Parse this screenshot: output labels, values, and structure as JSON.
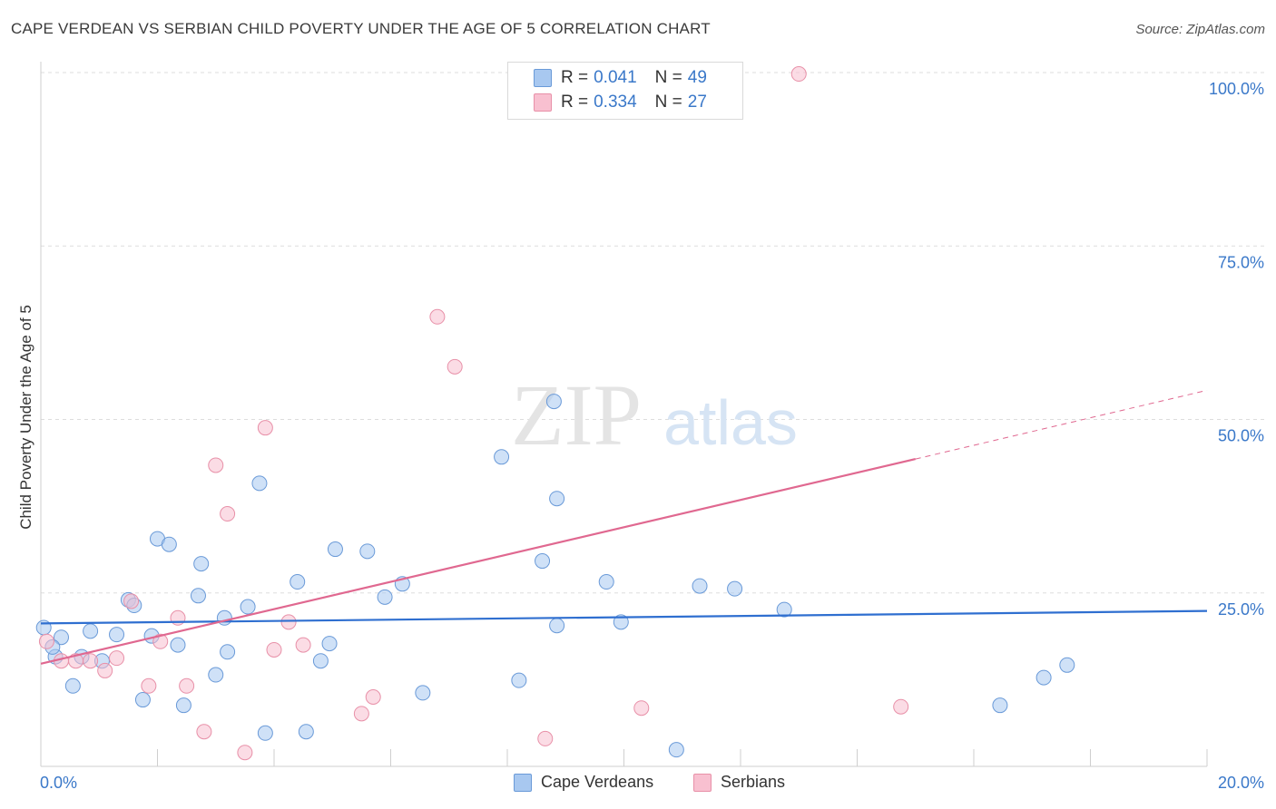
{
  "title": "CAPE VERDEAN VS SERBIAN CHILD POVERTY UNDER THE AGE OF 5 CORRELATION CHART",
  "source": "Source: ZipAtlas.com",
  "watermark": {
    "zip": "ZIP",
    "atlas": "atlas"
  },
  "legend": {
    "rows": [
      {
        "r_label": "R =",
        "r_value": "0.041",
        "n_label": "N =",
        "n_value": "49",
        "color": "#a8c8f0",
        "border": "#6a9ad8"
      },
      {
        "r_label": "R =",
        "r_value": "0.334",
        "n_label": "N =",
        "n_value": "27",
        "color": "#f8c0d0",
        "border": "#e890a8"
      }
    ]
  },
  "bottom_legend": {
    "blue": "Cape Verdeans",
    "pink": "Serbians"
  },
  "chart_data": {
    "type": "scatter",
    "title": "CAPE VERDEAN VS SERBIAN CHILD POVERTY UNDER THE AGE OF 5 CORRELATION CHART",
    "xlabel": "",
    "ylabel": "Child Poverty Under the Age of 5",
    "xlim": [
      0,
      20
    ],
    "ylim": [
      0,
      100
    ],
    "x_tick_labels": [
      "0.0%",
      "20.0%"
    ],
    "y_tick_labels": [
      "25.0%",
      "50.0%",
      "75.0%",
      "100.0%"
    ],
    "y_ticks": [
      25,
      50,
      75,
      100
    ],
    "grid": true,
    "legend_position": "top-center",
    "series": [
      {
        "name": "Cape Verdeans",
        "color": "#a8c8f0",
        "stroke": "#6a9ad8",
        "line_color": "#2f6fd0",
        "r": 0.041,
        "n": 49,
        "trend": {
          "x": [
            0,
            20
          ],
          "y": [
            20.6,
            22.4
          ]
        },
        "points": [
          [
            0.05,
            20.0
          ],
          [
            0.25,
            15.8
          ],
          [
            0.35,
            18.6
          ],
          [
            0.55,
            11.6
          ],
          [
            0.7,
            15.8
          ],
          [
            0.85,
            19.5
          ],
          [
            1.05,
            15.2
          ],
          [
            1.3,
            19.0
          ],
          [
            1.5,
            24.0
          ],
          [
            1.6,
            23.2
          ],
          [
            1.75,
            9.6
          ],
          [
            1.9,
            18.8
          ],
          [
            2.0,
            32.8
          ],
          [
            2.2,
            32.0
          ],
          [
            2.35,
            17.5
          ],
          [
            2.45,
            8.8
          ],
          [
            2.7,
            24.6
          ],
          [
            2.75,
            29.2
          ],
          [
            3.0,
            13.2
          ],
          [
            3.15,
            21.4
          ],
          [
            3.2,
            16.5
          ],
          [
            3.55,
            23.0
          ],
          [
            3.75,
            40.8
          ],
          [
            3.85,
            4.8
          ],
          [
            4.4,
            26.6
          ],
          [
            4.55,
            5.0
          ],
          [
            4.8,
            15.2
          ],
          [
            4.95,
            17.7
          ],
          [
            5.05,
            31.3
          ],
          [
            5.6,
            31.0
          ],
          [
            5.9,
            24.4
          ],
          [
            6.2,
            26.3
          ],
          [
            6.55,
            10.6
          ],
          [
            7.9,
            44.6
          ],
          [
            8.2,
            12.4
          ],
          [
            8.6,
            29.6
          ],
          [
            8.8,
            52.6
          ],
          [
            8.85,
            20.3
          ],
          [
            8.85,
            38.6
          ],
          [
            9.7,
            26.6
          ],
          [
            9.95,
            20.8
          ],
          [
            10.9,
            2.4
          ],
          [
            11.3,
            26.0
          ],
          [
            11.9,
            25.6
          ],
          [
            12.75,
            22.6
          ],
          [
            16.45,
            8.8
          ],
          [
            17.2,
            12.8
          ],
          [
            17.6,
            14.6
          ],
          [
            0.2,
            17.2
          ]
        ]
      },
      {
        "name": "Serbians",
        "color": "#f8c0d0",
        "stroke": "#e890a8",
        "line_color": "#e06890",
        "r": 0.334,
        "n": 27,
        "trend": {
          "x": [
            0,
            15
          ],
          "y": [
            14.8,
            44.3
          ]
        },
        "trend_dashed": {
          "x": [
            15,
            20
          ],
          "y": [
            44.3,
            54.2
          ]
        },
        "points": [
          [
            0.1,
            18.0
          ],
          [
            0.35,
            15.2
          ],
          [
            0.6,
            15.2
          ],
          [
            0.85,
            15.2
          ],
          [
            1.1,
            13.8
          ],
          [
            1.3,
            15.6
          ],
          [
            1.55,
            23.8
          ],
          [
            1.85,
            11.6
          ],
          [
            2.05,
            18.0
          ],
          [
            2.35,
            21.4
          ],
          [
            2.5,
            11.6
          ],
          [
            2.8,
            5.0
          ],
          [
            3.0,
            43.4
          ],
          [
            3.2,
            36.4
          ],
          [
            3.5,
            2.0
          ],
          [
            3.85,
            48.8
          ],
          [
            4.0,
            16.8
          ],
          [
            4.25,
            20.8
          ],
          [
            4.5,
            17.5
          ],
          [
            5.5,
            7.6
          ],
          [
            5.7,
            10.0
          ],
          [
            6.8,
            64.8
          ],
          [
            7.1,
            57.6
          ],
          [
            8.65,
            4.0
          ],
          [
            10.3,
            8.4
          ],
          [
            13.0,
            99.8
          ],
          [
            14.75,
            8.6
          ]
        ]
      }
    ]
  }
}
